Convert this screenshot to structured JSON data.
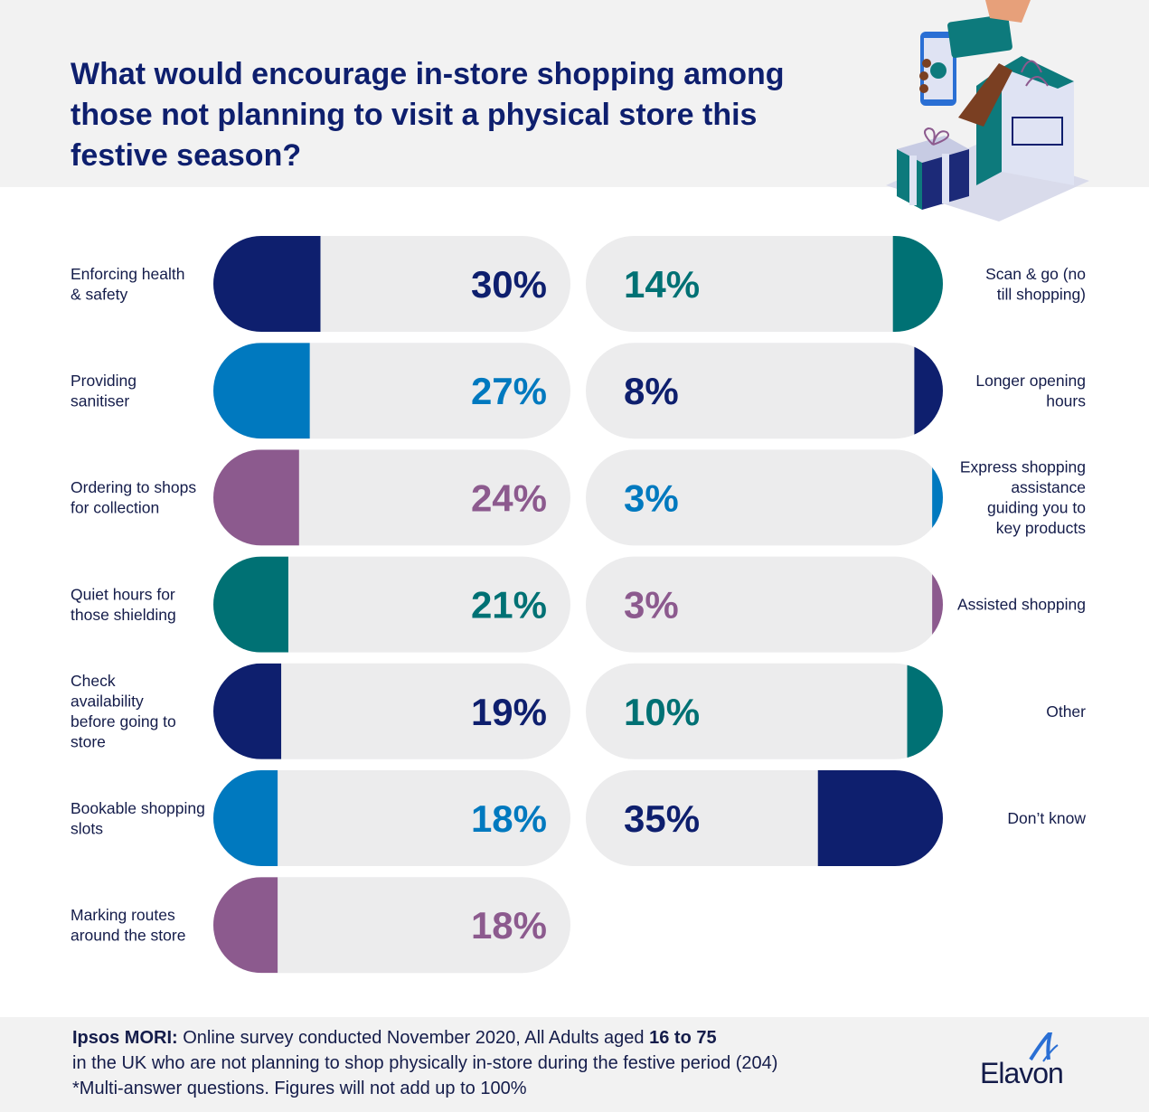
{
  "title": "What would encourage in-store shopping among those not planning to visit a physical store this festive season?",
  "colors": {
    "navy": "#0e1f6e",
    "blue": "#0079bf",
    "purple": "#8c5a8e",
    "teal": "#007174",
    "track": "#ececed"
  },
  "chart_data": {
    "type": "bar",
    "unit": "%",
    "left_column": [
      {
        "label": "Enforcing health & safety",
        "value": 30,
        "display": "30%",
        "color": "navy"
      },
      {
        "label": "Providing sanitiser",
        "value": 27,
        "display": "27%",
        "color": "blue"
      },
      {
        "label": "Ordering to shops for collection",
        "value": 24,
        "display": "24%",
        "color": "purple"
      },
      {
        "label": "Quiet hours for those shielding",
        "value": 21,
        "display": "21%",
        "color": "teal"
      },
      {
        "label": "Check availability before going to store",
        "value": 19,
        "display": "19%",
        "color": "navy"
      },
      {
        "label": "Bookable shopping slots",
        "value": 18,
        "display": "18%",
        "color": "blue"
      },
      {
        "label": "Marking routes around the store",
        "value": 18,
        "display": "18%",
        "color": "purple"
      }
    ],
    "right_column": [
      {
        "label": "Scan & go (no till shopping)",
        "value": 14,
        "display": "14%",
        "color": "teal"
      },
      {
        "label": "Longer opening hours",
        "value": 8,
        "display": "8%",
        "color": "navy"
      },
      {
        "label": "Express shopping assistance guiding you to key products",
        "value": 3,
        "display": "3%",
        "color": "blue"
      },
      {
        "label": "Assisted shopping",
        "value": 3,
        "display": "3%",
        "color": "purple"
      },
      {
        "label": "Other",
        "value": 10,
        "display": "10%",
        "color": "teal"
      },
      {
        "label": "Don’t know",
        "value": 35,
        "display": "35%",
        "color": "navy"
      }
    ]
  },
  "footer": {
    "source_bold": "Ipsos MORI:",
    "source_text_1": " Online survey conducted November 2020, All Adults aged ",
    "source_bold_2": "16 to 75",
    "source_text_2": "in the UK who are not planning to shop physically in-store during the festive period (204)",
    "note": "*Multi-answer questions. Figures will not add up to 100%",
    "logo_text": "Elavon"
  }
}
